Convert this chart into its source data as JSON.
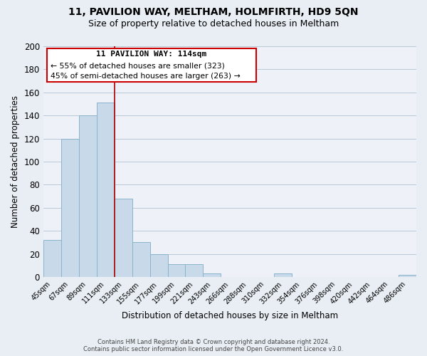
{
  "title": "11, PAVILION WAY, MELTHAM, HOLMFIRTH, HD9 5QN",
  "subtitle": "Size of property relative to detached houses in Meltham",
  "xlabel": "Distribution of detached houses by size in Meltham",
  "ylabel": "Number of detached properties",
  "bar_color": "#c8daea",
  "bar_edge_color": "#8ab4cc",
  "annotation_box_edge": "#cc0000",
  "annotation_text_line1": "11 PAVILION WAY: 114sqm",
  "annotation_text_line2": "← 55% of detached houses are smaller (323)",
  "annotation_text_line3": "45% of semi-detached houses are larger (263) →",
  "footer_line1": "Contains HM Land Registry data © Crown copyright and database right 2024.",
  "footer_line2": "Contains public sector information licensed under the Open Government Licence v3.0.",
  "bin_labels": [
    "45sqm",
    "67sqm",
    "89sqm",
    "111sqm",
    "133sqm",
    "155sqm",
    "177sqm",
    "199sqm",
    "221sqm",
    "243sqm",
    "266sqm",
    "288sqm",
    "310sqm",
    "332sqm",
    "354sqm",
    "376sqm",
    "398sqm",
    "420sqm",
    "442sqm",
    "464sqm",
    "486sqm"
  ],
  "bar_heights": [
    32,
    120,
    140,
    151,
    68,
    30,
    20,
    11,
    11,
    3,
    0,
    0,
    0,
    3,
    0,
    0,
    0,
    0,
    0,
    0,
    2
  ],
  "vline_bin_index": 3,
  "vline_color": "#aa0000",
  "ylim": [
    0,
    200
  ],
  "yticks": [
    0,
    20,
    40,
    60,
    80,
    100,
    120,
    140,
    160,
    180,
    200
  ],
  "background_color": "#e8eef4",
  "plot_background_color": "#eef2f8",
  "grid_color": "#b8c8d8",
  "title_fontsize": 10,
  "subtitle_fontsize": 9
}
